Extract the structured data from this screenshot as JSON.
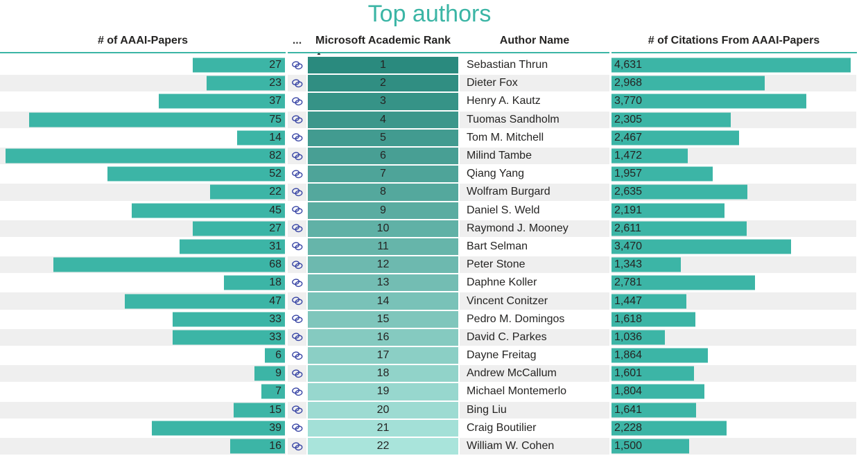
{
  "title": "Top authors",
  "columns": [
    {
      "label": "# of AAAI-Papers"
    },
    {
      "label": "..."
    },
    {
      "label": "Microsoft Academic Rank",
      "sorted": "ascending"
    },
    {
      "label": "Author Name"
    },
    {
      "label": "# of Citations From AAAI-Papers"
    }
  ],
  "icons": {
    "link_column": "link-icon",
    "sort_indicator": "sort-ascending-arrow"
  },
  "colors": {
    "accent": "#3BB5A5",
    "bar": "#3CB5A6",
    "rank_scale_start": "#2A8A7E",
    "rank_scale_end": "#A9E4DB",
    "stripe": "#EFEFEF",
    "link_icon": "#3845A5",
    "text": "#252423"
  },
  "chart_data": {
    "type": "table",
    "title": "Top authors",
    "columns": [
      "# of AAAI-Papers",
      "link",
      "Microsoft Academic Rank",
      "Author Name",
      "# of Citations From AAAI-Papers"
    ],
    "sorted_by": "Microsoft Academic Rank ascending",
    "papers_axis_max": 82,
    "citations_axis_max": 4631,
    "rows": [
      {
        "papers": 27,
        "rank": 1,
        "author": "Sebastian Thrun",
        "citations": 4631
      },
      {
        "papers": 23,
        "rank": 2,
        "author": "Dieter Fox",
        "citations": 2968
      },
      {
        "papers": 37,
        "rank": 3,
        "author": "Henry A. Kautz",
        "citations": 3770
      },
      {
        "papers": 75,
        "rank": 4,
        "author": "Tuomas Sandholm",
        "citations": 2305
      },
      {
        "papers": 14,
        "rank": 5,
        "author": "Tom M. Mitchell",
        "citations": 2467
      },
      {
        "papers": 82,
        "rank": 6,
        "author": "Milind Tambe",
        "citations": 1472
      },
      {
        "papers": 52,
        "rank": 7,
        "author": "Qiang Yang",
        "citations": 1957
      },
      {
        "papers": 22,
        "rank": 8,
        "author": "Wolfram Burgard",
        "citations": 2635
      },
      {
        "papers": 45,
        "rank": 9,
        "author": "Daniel S. Weld",
        "citations": 2191
      },
      {
        "papers": 27,
        "rank": 10,
        "author": "Raymond J. Mooney",
        "citations": 2611
      },
      {
        "papers": 31,
        "rank": 11,
        "author": "Bart Selman",
        "citations": 3470
      },
      {
        "papers": 68,
        "rank": 12,
        "author": "Peter Stone",
        "citations": 1343
      },
      {
        "papers": 18,
        "rank": 13,
        "author": "Daphne Koller",
        "citations": 2781
      },
      {
        "papers": 47,
        "rank": 14,
        "author": "Vincent Conitzer",
        "citations": 1447
      },
      {
        "papers": 33,
        "rank": 15,
        "author": "Pedro M. Domingos",
        "citations": 1618
      },
      {
        "papers": 33,
        "rank": 16,
        "author": "David C. Parkes",
        "citations": 1036
      },
      {
        "papers": 6,
        "rank": 17,
        "author": "Dayne Freitag",
        "citations": 1864
      },
      {
        "papers": 9,
        "rank": 18,
        "author": "Andrew McCallum",
        "citations": 1601
      },
      {
        "papers": 7,
        "rank": 19,
        "author": "Michael Montemerlo",
        "citations": 1804
      },
      {
        "papers": 15,
        "rank": 20,
        "author": "Bing Liu",
        "citations": 1641
      },
      {
        "papers": 39,
        "rank": 21,
        "author": "Craig Boutilier",
        "citations": 2228
      },
      {
        "papers": 16,
        "rank": 22,
        "author": "William W. Cohen",
        "citations": 1500
      }
    ]
  }
}
